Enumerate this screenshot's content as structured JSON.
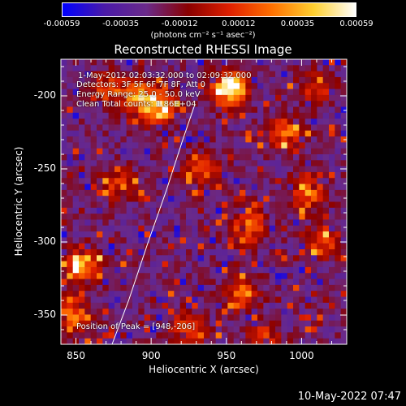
{
  "colorbar": {
    "ticks": [
      "-0.00059",
      "-0.00035",
      "-0.00012",
      "0.00012",
      "0.00035",
      "0.00059"
    ],
    "unit": "(photons cm⁻² s⁻¹ asec⁻²)",
    "colors": [
      "#0000ff",
      "#4a1aa8",
      "#6a2a8a",
      "#8a0000",
      "#e02000",
      "#ff7000",
      "#ffd030",
      "#ffffff"
    ]
  },
  "annotations": {
    "time": "1-May-2012 02:03:32.000 to 02:09:32.000",
    "detectors": "Detectors: 3F 5F 6F 7F 8F, Att 0",
    "energy": "Energy Range: 25.0 - 50.0 keV",
    "clean": "Clean    Total counts: 1.86E+04",
    "peak": "Position of Peak = [948,-206]"
  },
  "footer": "10-May-2022 07:47",
  "chart_data": {
    "type": "heatmap",
    "title": "Reconstructed RHESSI Image",
    "xlabel": "Heliocentric X (arcsec)",
    "ylabel": "Heliocentric Y (arcsec)",
    "xlim": [
      840,
      1030
    ],
    "ylim": [
      -370,
      -175
    ],
    "xticks": [
      "850",
      "900",
      "950",
      "1000"
    ],
    "yticks": [
      "-200",
      "-250",
      "-300",
      "-350"
    ],
    "limb_curve": [
      [
        874,
        -370
      ],
      [
        885,
        -340
      ],
      [
        898,
        -300
      ],
      [
        910,
        -265
      ],
      [
        921,
        -230
      ],
      [
        929,
        -206
      ]
    ],
    "peak": [
      948,
      -206
    ],
    "bright_sources": [
      {
        "x": 952,
        "y": -195,
        "strength": 1.0
      },
      {
        "x": 905,
        "y": -208,
        "strength": 0.85
      },
      {
        "x": 890,
        "y": -200,
        "strength": 0.6
      },
      {
        "x": 855,
        "y": -315,
        "strength": 0.75
      },
      {
        "x": 848,
        "y": -350,
        "strength": 0.6
      },
      {
        "x": 870,
        "y": -195,
        "strength": 0.45
      },
      {
        "x": 878,
        "y": -260,
        "strength": 0.35
      },
      {
        "x": 935,
        "y": -250,
        "strength": 0.45
      },
      {
        "x": 965,
        "y": -290,
        "strength": 0.55
      },
      {
        "x": 990,
        "y": -225,
        "strength": 0.5
      },
      {
        "x": 1005,
        "y": -265,
        "strength": 0.55
      },
      {
        "x": 960,
        "y": -335,
        "strength": 0.5
      },
      {
        "x": 925,
        "y": -360,
        "strength": 0.5
      },
      {
        "x": 975,
        "y": -365,
        "strength": 0.35
      },
      {
        "x": 1015,
        "y": -300,
        "strength": 0.45
      },
      {
        "x": 1010,
        "y": -195,
        "strength": 0.35
      }
    ]
  }
}
